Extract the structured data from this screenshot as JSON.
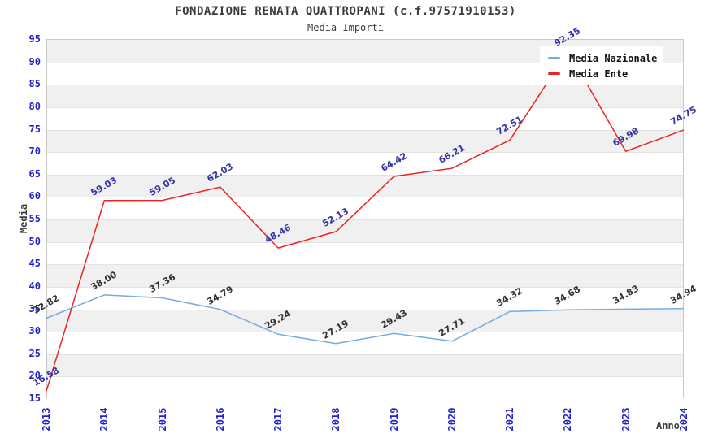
{
  "chart_data": {
    "type": "line",
    "title": "FONDAZIONE RENATA QUATTROPANI (c.f.97571910153)",
    "subtitle": "Media Importi",
    "xlabel": "Anno",
    "ylabel": "Media",
    "ylim": [
      15,
      95
    ],
    "ytick_step": 5,
    "grid": "horizontal-bands-alternating",
    "legend_position": "top-right",
    "categories": [
      "2013",
      "2014",
      "2015",
      "2016",
      "2017",
      "2018",
      "2019",
      "2020",
      "2021",
      "2022",
      "2023",
      "2024"
    ],
    "series": [
      {
        "name": "Media Nazionale",
        "color": "#74abe0",
        "label_color": "#333333",
        "values": [
          32.82,
          38.0,
          37.36,
          34.79,
          29.24,
          27.19,
          29.43,
          27.71,
          34.32,
          34.68,
          34.83,
          34.94
        ]
      },
      {
        "name": "Media Ente",
        "color": "#ee2222",
        "label_color": "#3434a8",
        "values": [
          16.58,
          59.03,
          59.05,
          62.03,
          48.46,
          52.13,
          64.42,
          66.21,
          72.51,
          92.35,
          69.98,
          74.75
        ]
      }
    ]
  },
  "colors": {
    "axis_tick_text": "#2121cc",
    "band_gray": "#f0f0f0",
    "band_white": "#ffffff",
    "grid_line": "#e2e2e2",
    "plot_border": "#c9c9c9",
    "title_text": "#3c3c3c",
    "legend_text": "#111111"
  }
}
